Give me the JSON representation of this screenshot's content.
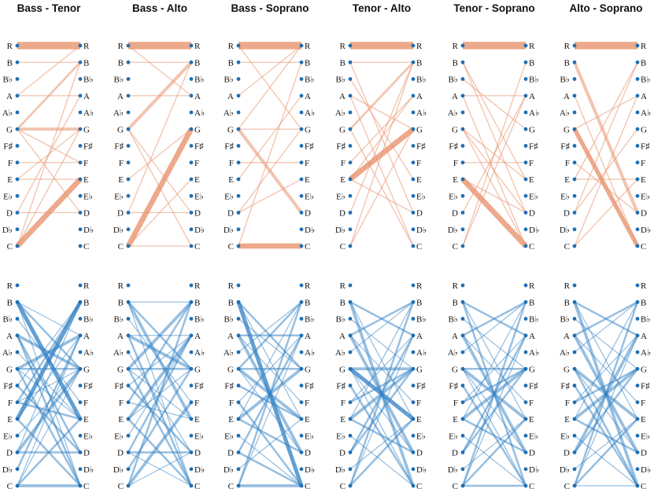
{
  "figure": {
    "description_type": "voice-pair transition diagrams",
    "notes": [
      "R",
      "B",
      "B♭",
      "A",
      "A♭",
      "G",
      "F♯",
      "F",
      "E",
      "E♭",
      "D",
      "D♭",
      "C"
    ],
    "colors": {
      "top": "#e8946e",
      "bottom": "#2f7fc4",
      "dot": "#1f6fb3"
    }
  },
  "panels": [
    {
      "title": "Bass - Tenor"
    },
    {
      "title": "Bass - Alto"
    },
    {
      "title": "Bass - Soprano"
    },
    {
      "title": "Tenor - Alto"
    },
    {
      "title": "Tenor - Soprano"
    },
    {
      "title": "Alto - Soprano"
    }
  ],
  "chart_data": {
    "type": "bipartite-transition",
    "row_labels": [
      "R",
      "B",
      "B♭",
      "A",
      "A♭",
      "G",
      "F♯",
      "F",
      "E",
      "E♭",
      "D",
      "D♭",
      "C"
    ],
    "top_row": [
      {
        "panel": "Bass - Tenor",
        "edges": [
          [
            0,
            0,
            7
          ],
          [
            5,
            5,
            3
          ],
          [
            5,
            1,
            2
          ],
          [
            5,
            7,
            1
          ],
          [
            12,
            8,
            5
          ],
          [
            3,
            3,
            1
          ],
          [
            5,
            10,
            1
          ],
          [
            8,
            8,
            1
          ],
          [
            1,
            1,
            1
          ],
          [
            7,
            7,
            1
          ],
          [
            10,
            10,
            1
          ],
          [
            12,
            5,
            1
          ],
          [
            10,
            3,
            1
          ],
          [
            12,
            1,
            1
          ],
          [
            8,
            5,
            1
          ],
          [
            3,
            0,
            1
          ]
        ]
      },
      {
        "panel": "Bass - Alto",
        "edges": [
          [
            0,
            0,
            7
          ],
          [
            5,
            1,
            3
          ],
          [
            12,
            5,
            5
          ],
          [
            5,
            10,
            1
          ],
          [
            10,
            10,
            1
          ],
          [
            12,
            12,
            1
          ],
          [
            3,
            3,
            1
          ],
          [
            10,
            1,
            1
          ],
          [
            1,
            1,
            1
          ],
          [
            8,
            5,
            1
          ],
          [
            0,
            3,
            1
          ],
          [
            12,
            8,
            1
          ],
          [
            5,
            12,
            1
          ]
        ]
      },
      {
        "panel": "Bass - Soprano",
        "edges": [
          [
            0,
            0,
            7
          ],
          [
            12,
            12,
            5
          ],
          [
            5,
            10,
            3
          ],
          [
            5,
            5,
            1
          ],
          [
            10,
            5,
            1
          ],
          [
            12,
            1,
            1
          ],
          [
            8,
            3,
            1
          ],
          [
            3,
            0,
            1
          ],
          [
            1,
            1,
            1
          ],
          [
            0,
            5,
            1
          ],
          [
            5,
            0,
            1
          ],
          [
            10,
            8,
            1
          ],
          [
            7,
            7,
            1
          ]
        ]
      },
      {
        "panel": "Tenor - Alto",
        "edges": [
          [
            0,
            0,
            7
          ],
          [
            8,
            5,
            5
          ],
          [
            1,
            10,
            1
          ],
          [
            5,
            1,
            2
          ],
          [
            8,
            3,
            1
          ],
          [
            3,
            12,
            1
          ],
          [
            2,
            8,
            1
          ],
          [
            3,
            5,
            1
          ],
          [
            10,
            1,
            1
          ],
          [
            12,
            5,
            1
          ],
          [
            1,
            1,
            1
          ],
          [
            8,
            10,
            1
          ],
          [
            5,
            12,
            1
          ],
          [
            7,
            3,
            1
          ],
          [
            12,
            1,
            1
          ]
        ]
      },
      {
        "panel": "Tenor - Soprano",
        "edges": [
          [
            0,
            0,
            7
          ],
          [
            8,
            12,
            5
          ],
          [
            1,
            8,
            1
          ],
          [
            5,
            10,
            1
          ],
          [
            3,
            3,
            1
          ],
          [
            1,
            10,
            1
          ],
          [
            12,
            3,
            1
          ],
          [
            5,
            8,
            1
          ],
          [
            7,
            7,
            1
          ],
          [
            3,
            12,
            1
          ],
          [
            10,
            3,
            1
          ],
          [
            2,
            5,
            1
          ],
          [
            12,
            1,
            1
          ],
          [
            8,
            10,
            1
          ],
          [
            5,
            12,
            1
          ]
        ]
      },
      {
        "panel": "Alto - Soprano",
        "edges": [
          [
            0,
            0,
            7
          ],
          [
            1,
            10,
            3
          ],
          [
            5,
            12,
            4
          ],
          [
            12,
            3,
            1
          ],
          [
            10,
            5,
            1
          ],
          [
            8,
            1,
            1
          ],
          [
            3,
            12,
            1
          ],
          [
            12,
            8,
            1
          ],
          [
            10,
            1,
            1
          ],
          [
            5,
            3,
            1
          ],
          [
            7,
            10,
            1
          ],
          [
            8,
            8,
            1
          ]
        ]
      }
    ],
    "bottom_row": [
      {
        "panel": "Bass - Tenor",
        "edges": [
          [
            12,
            12,
            3
          ],
          [
            1,
            8,
            4
          ],
          [
            3,
            5,
            3
          ],
          [
            5,
            3,
            3
          ],
          [
            8,
            1,
            4
          ],
          [
            10,
            5,
            3
          ],
          [
            12,
            8,
            2
          ],
          [
            5,
            12,
            2
          ],
          [
            3,
            10,
            2
          ],
          [
            7,
            1,
            2
          ],
          [
            1,
            5,
            2
          ],
          [
            6,
            10,
            2
          ],
          [
            8,
            12,
            2
          ],
          [
            11,
            3,
            2
          ],
          [
            10,
            10,
            2
          ],
          [
            5,
            5,
            2
          ],
          [
            7,
            8,
            2
          ],
          [
            3,
            12,
            2
          ],
          [
            1,
            3,
            1
          ],
          [
            2,
            7,
            1
          ],
          [
            4,
            8,
            1
          ],
          [
            9,
            5,
            1
          ],
          [
            12,
            5,
            1
          ],
          [
            5,
            8,
            1
          ],
          [
            1,
            12,
            1
          ],
          [
            6,
            1,
            1
          ],
          [
            8,
            3,
            1
          ],
          [
            10,
            1,
            1
          ],
          [
            12,
            3,
            1
          ],
          [
            7,
            5,
            1
          ]
        ]
      },
      {
        "panel": "Bass - Alto",
        "edges": [
          [
            1,
            8,
            3
          ],
          [
            3,
            5,
            3
          ],
          [
            5,
            1,
            3
          ],
          [
            8,
            3,
            3
          ],
          [
            12,
            7,
            3
          ],
          [
            10,
            10,
            2
          ],
          [
            5,
            12,
            2
          ],
          [
            3,
            12,
            2
          ],
          [
            1,
            5,
            2
          ],
          [
            7,
            1,
            2
          ],
          [
            6,
            10,
            2
          ],
          [
            8,
            12,
            2
          ],
          [
            11,
            5,
            2
          ],
          [
            5,
            5,
            2
          ],
          [
            12,
            1,
            2
          ],
          [
            10,
            3,
            2
          ],
          [
            1,
            12,
            1
          ],
          [
            2,
            7,
            1
          ],
          [
            4,
            10,
            1
          ],
          [
            9,
            3,
            1
          ],
          [
            7,
            8,
            1
          ],
          [
            3,
            3,
            1
          ],
          [
            1,
            1,
            1
          ],
          [
            5,
            8,
            1
          ],
          [
            8,
            5,
            1
          ],
          [
            10,
            12,
            1
          ],
          [
            12,
            10,
            1
          ],
          [
            6,
            3,
            1
          ]
        ]
      },
      {
        "panel": "Bass - Soprano",
        "edges": [
          [
            12,
            12,
            3
          ],
          [
            1,
            12,
            4
          ],
          [
            3,
            10,
            3
          ],
          [
            5,
            8,
            3
          ],
          [
            8,
            5,
            3
          ],
          [
            10,
            3,
            2
          ],
          [
            12,
            1,
            2
          ],
          [
            5,
            1,
            2
          ],
          [
            3,
            3,
            2
          ],
          [
            1,
            5,
            2
          ],
          [
            7,
            12,
            2
          ],
          [
            6,
            8,
            2
          ],
          [
            5,
            5,
            2
          ],
          [
            8,
            10,
            2
          ],
          [
            10,
            12,
            2
          ],
          [
            11,
            8,
            1
          ],
          [
            2,
            5,
            1
          ],
          [
            4,
            1,
            1
          ],
          [
            9,
            12,
            1
          ],
          [
            7,
            3,
            1
          ],
          [
            3,
            7,
            1
          ],
          [
            1,
            8,
            1
          ],
          [
            12,
            3,
            1
          ],
          [
            5,
            10,
            1
          ],
          [
            8,
            1,
            1
          ]
        ]
      },
      {
        "panel": "Tenor - Alto",
        "edges": [
          [
            5,
            5,
            3
          ],
          [
            1,
            12,
            3
          ],
          [
            3,
            10,
            3
          ],
          [
            5,
            8,
            4
          ],
          [
            8,
            5,
            3
          ],
          [
            10,
            3,
            2
          ],
          [
            12,
            1,
            2
          ],
          [
            3,
            1,
            2
          ],
          [
            1,
            3,
            2
          ],
          [
            7,
            5,
            2
          ],
          [
            6,
            12,
            2
          ],
          [
            8,
            10,
            2
          ],
          [
            12,
            8,
            2
          ],
          [
            10,
            5,
            2
          ],
          [
            11,
            8,
            1
          ],
          [
            2,
            5,
            1
          ],
          [
            4,
            1,
            1
          ],
          [
            9,
            12,
            1
          ],
          [
            7,
            3,
            1
          ],
          [
            3,
            7,
            1
          ],
          [
            1,
            8,
            1
          ],
          [
            12,
            3,
            1
          ],
          [
            5,
            10,
            1
          ],
          [
            8,
            1,
            1
          ],
          [
            5,
            12,
            1
          ]
        ]
      },
      {
        "panel": "Tenor - Soprano",
        "edges": [
          [
            5,
            5,
            2
          ],
          [
            1,
            12,
            2
          ],
          [
            3,
            10,
            3
          ],
          [
            5,
            8,
            3
          ],
          [
            8,
            5,
            3
          ],
          [
            10,
            3,
            2
          ],
          [
            12,
            1,
            2
          ],
          [
            3,
            1,
            2
          ],
          [
            1,
            3,
            2
          ],
          [
            7,
            5,
            2
          ],
          [
            6,
            12,
            2
          ],
          [
            8,
            10,
            2
          ],
          [
            12,
            8,
            2
          ],
          [
            10,
            5,
            2
          ],
          [
            11,
            8,
            1
          ],
          [
            2,
            5,
            1
          ],
          [
            4,
            1,
            1
          ],
          [
            9,
            12,
            1
          ],
          [
            7,
            3,
            1
          ],
          [
            3,
            7,
            1
          ],
          [
            1,
            8,
            1
          ],
          [
            12,
            3,
            1
          ],
          [
            5,
            10,
            1
          ],
          [
            8,
            1,
            1
          ],
          [
            5,
            12,
            1
          ],
          [
            12,
            12,
            2
          ]
        ]
      },
      {
        "panel": "Alto - Soprano",
        "edges": [
          [
            1,
            12,
            3
          ],
          [
            3,
            10,
            3
          ],
          [
            5,
            8,
            3
          ],
          [
            8,
            5,
            3
          ],
          [
            10,
            3,
            3
          ],
          [
            12,
            1,
            2
          ],
          [
            3,
            1,
            2
          ],
          [
            1,
            3,
            2
          ],
          [
            7,
            5,
            2
          ],
          [
            6,
            12,
            2
          ],
          [
            8,
            10,
            2
          ],
          [
            12,
            8,
            2
          ],
          [
            10,
            5,
            2
          ],
          [
            5,
            12,
            2
          ],
          [
            11,
            8,
            1
          ],
          [
            2,
            5,
            1
          ],
          [
            4,
            1,
            1
          ],
          [
            9,
            12,
            1
          ],
          [
            7,
            3,
            1
          ],
          [
            3,
            7,
            1
          ],
          [
            1,
            8,
            1
          ],
          [
            12,
            3,
            1
          ],
          [
            5,
            10,
            1
          ],
          [
            8,
            1,
            1
          ],
          [
            12,
            12,
            1
          ]
        ]
      }
    ]
  }
}
